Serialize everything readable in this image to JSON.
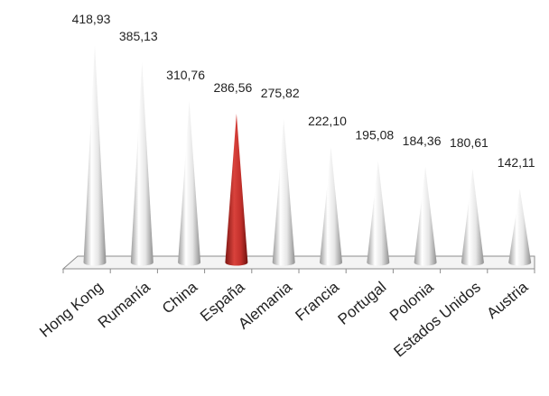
{
  "chart_data": {
    "type": "bar",
    "categories": [
      "Hong Kong",
      "Rumanía",
      "China",
      "España",
      "Alemania",
      "Francia",
      "Portugal",
      "Polonia",
      "Estados Unidos",
      "Austria"
    ],
    "values": [
      418.93,
      385.13,
      310.76,
      286.56,
      275.82,
      222.1,
      195.08,
      184.36,
      180.61,
      142.11
    ],
    "value_labels": [
      "418,93",
      "385,13",
      "310,76",
      "286,56",
      "275,82",
      "222,10",
      "195,08",
      "184,36",
      "180,61",
      "142,11"
    ],
    "highlight_category": "España",
    "bar_shape": "cone",
    "colors": {
      "default": "#d9d9d9",
      "highlight": "#c0302d",
      "axis": "#8c8c8c"
    },
    "title": "",
    "xlabel": "",
    "ylabel": "",
    "ylim": [
      0,
      450
    ],
    "grid": false,
    "legend": false
  }
}
